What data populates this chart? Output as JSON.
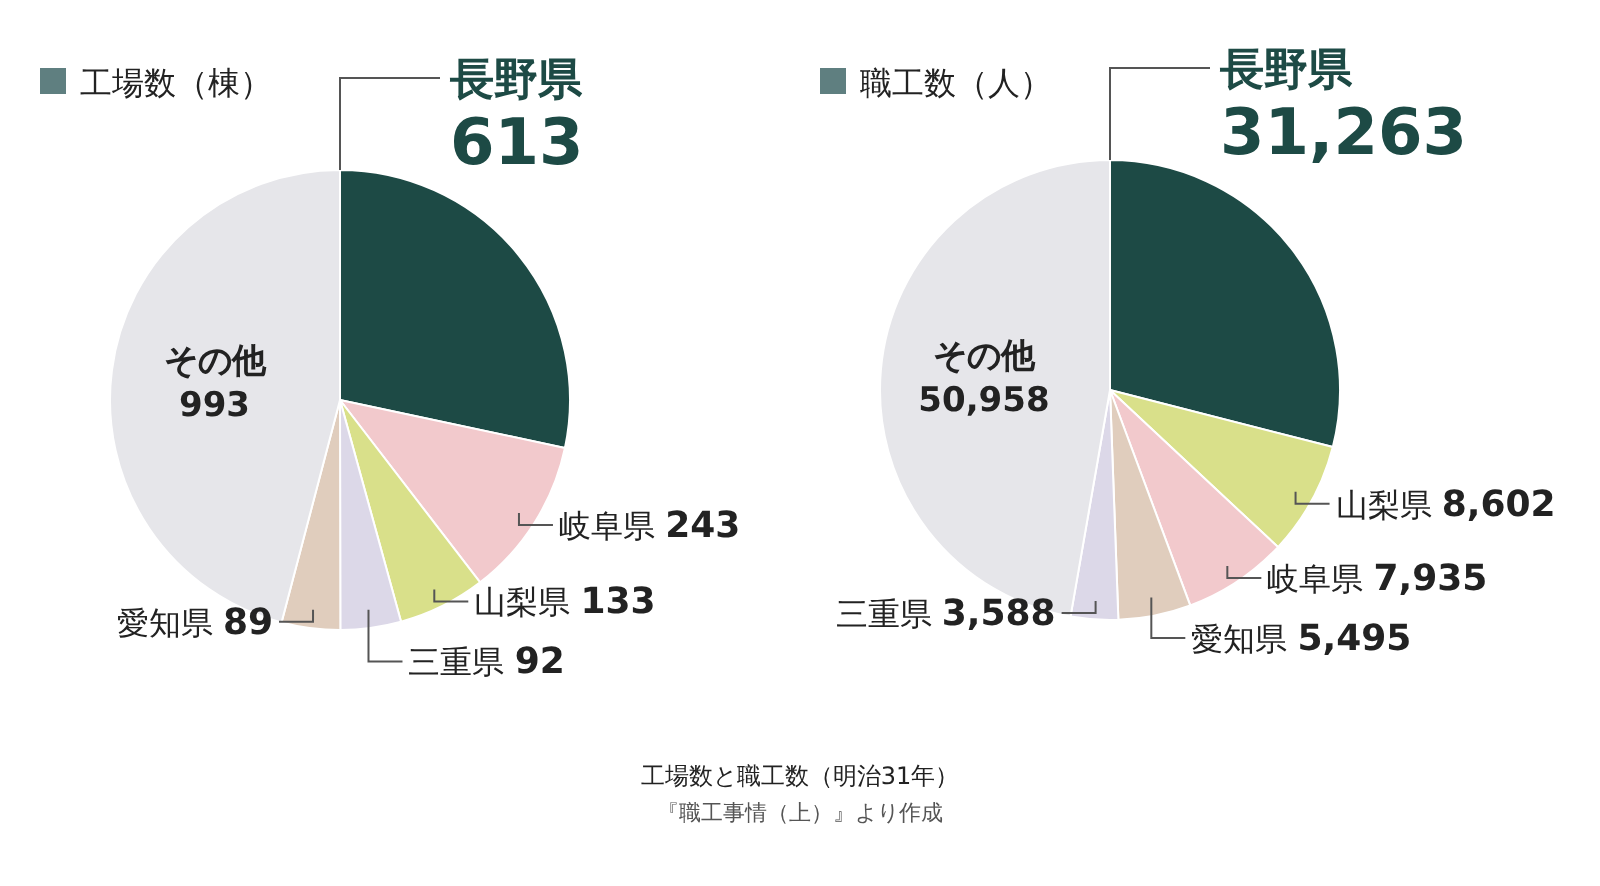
{
  "chart_data": [
    {
      "type": "pie",
      "title": "工場数（棟）",
      "categories": [
        "長野県",
        "岐阜県",
        "山梨県",
        "三重県",
        "愛知県",
        "その他"
      ],
      "values": [
        613,
        243,
        133,
        92,
        89,
        993
      ],
      "colors": [
        "#1d4a45",
        "#f2c9cc",
        "#d9e08a",
        "#dcd8e8",
        "#e0cdbd",
        "#e6e6ea"
      ],
      "data_labels": true
    },
    {
      "type": "pie",
      "title": "職工数（人）",
      "categories": [
        "長野県",
        "山梨県",
        "岐阜県",
        "愛知県",
        "三重県",
        "その他"
      ],
      "values": [
        31263,
        8602,
        7935,
        5495,
        3588,
        50958
      ],
      "colors": [
        "#1d4a45",
        "#d9e08a",
        "#f2c9cc",
        "#e0cdbd",
        "#dcd8e8",
        "#e6e6ea"
      ],
      "value_labels": [
        "31,263",
        "8,602",
        "7,935",
        "5,495",
        "3,588",
        "50,958"
      ],
      "annotations": [
        "工場数と職工数（明治31年）",
        "『職工事情（上）』より作成"
      ]
    }
  ]
}
